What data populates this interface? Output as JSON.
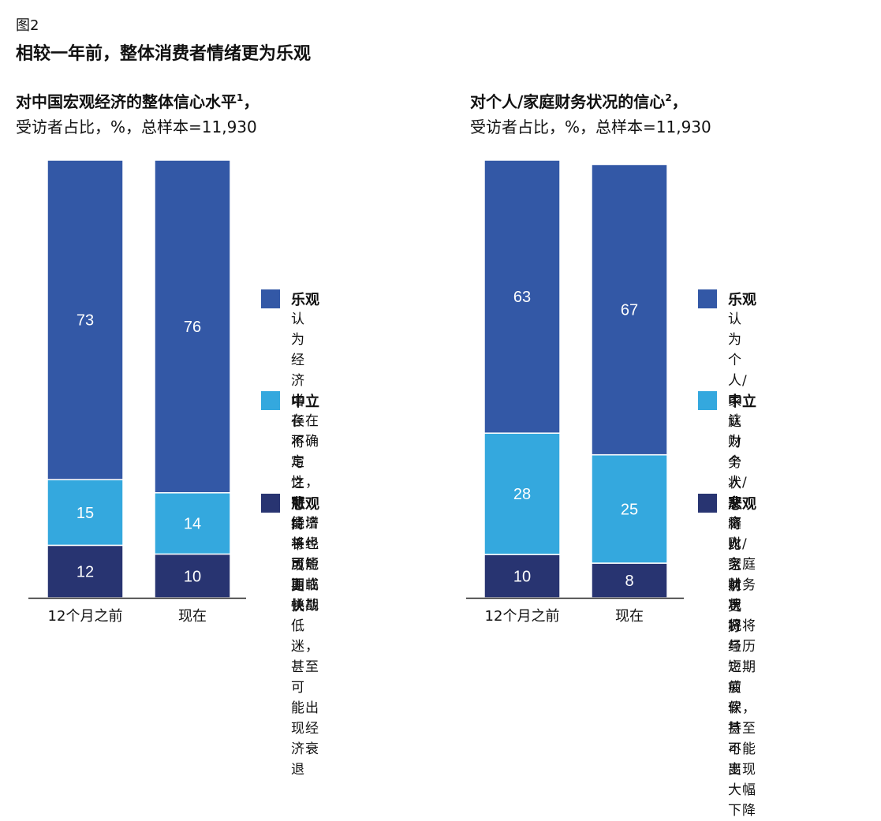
{
  "figure": {
    "label": "图2",
    "title": "相较一年前，整体消费者情绪更为乐观"
  },
  "colors": {
    "optimistic": "#3358a6",
    "neutral": "#34a8de",
    "pessimistic": "#283471",
    "baseline": "#222222"
  },
  "chart_data": [
    {
      "type": "bar",
      "stacked": true,
      "title": "对中国宏观经济的整体信心水平",
      "title_footnote": "1",
      "title_suffix": "，",
      "subtitle": "受访者占比，%，总样本=11,930",
      "categories": [
        "12个月之前",
        "现在"
      ],
      "series": [
        {
          "name": "悲观",
          "values": [
            12,
            10
          ]
        },
        {
          "name": "中立",
          "values": [
            15,
            14
          ]
        },
        {
          "name": "乐观",
          "values": [
            73,
            76
          ]
        }
      ],
      "ylim": [
        0,
        100
      ],
      "grid": false,
      "legend_placement": "right",
      "legend": [
        {
          "name": "乐观",
          "description": "认为经济增长将与\n之前持平或更快"
        },
        {
          "name": "中立",
          "description": "存在不确定性，可\n能增长也可能面临\n挑战"
        },
        {
          "name": "悲观",
          "description": "经济将经历短期或\n长期低迷，甚至可\n能出现经济衰退"
        }
      ]
    },
    {
      "type": "bar",
      "stacked": true,
      "title": "对个人/家庭财务状况的信心",
      "title_footnote": "2",
      "title_suffix": "，",
      "subtitle": "受访者占比，%，总样本=11,930",
      "categories": [
        "12个月之前",
        "现在"
      ],
      "series": [
        {
          "name": "悲观",
          "values": [
            10,
            8
          ]
        },
        {
          "name": "中立",
          "values": [
            28,
            25
          ]
        },
        {
          "name": "乐观",
          "values": [
            63,
            67
          ]
        }
      ],
      "ylim": [
        0,
        101
      ],
      "grid": false,
      "legend_placement": "right",
      "legend": [
        {
          "name": "乐观",
          "description": "认为个人/家庭财\n务状况将比之前\n更好"
        },
        {
          "name": "中立",
          "description": "认为个人/家庭财\n务状况将与之前保\n持不变"
        },
        {
          "name": "悲观",
          "description": "个人/家庭财务状\n况将经历短期疲软，\n甚至可能出现大幅\n下降"
        }
      ]
    }
  ]
}
